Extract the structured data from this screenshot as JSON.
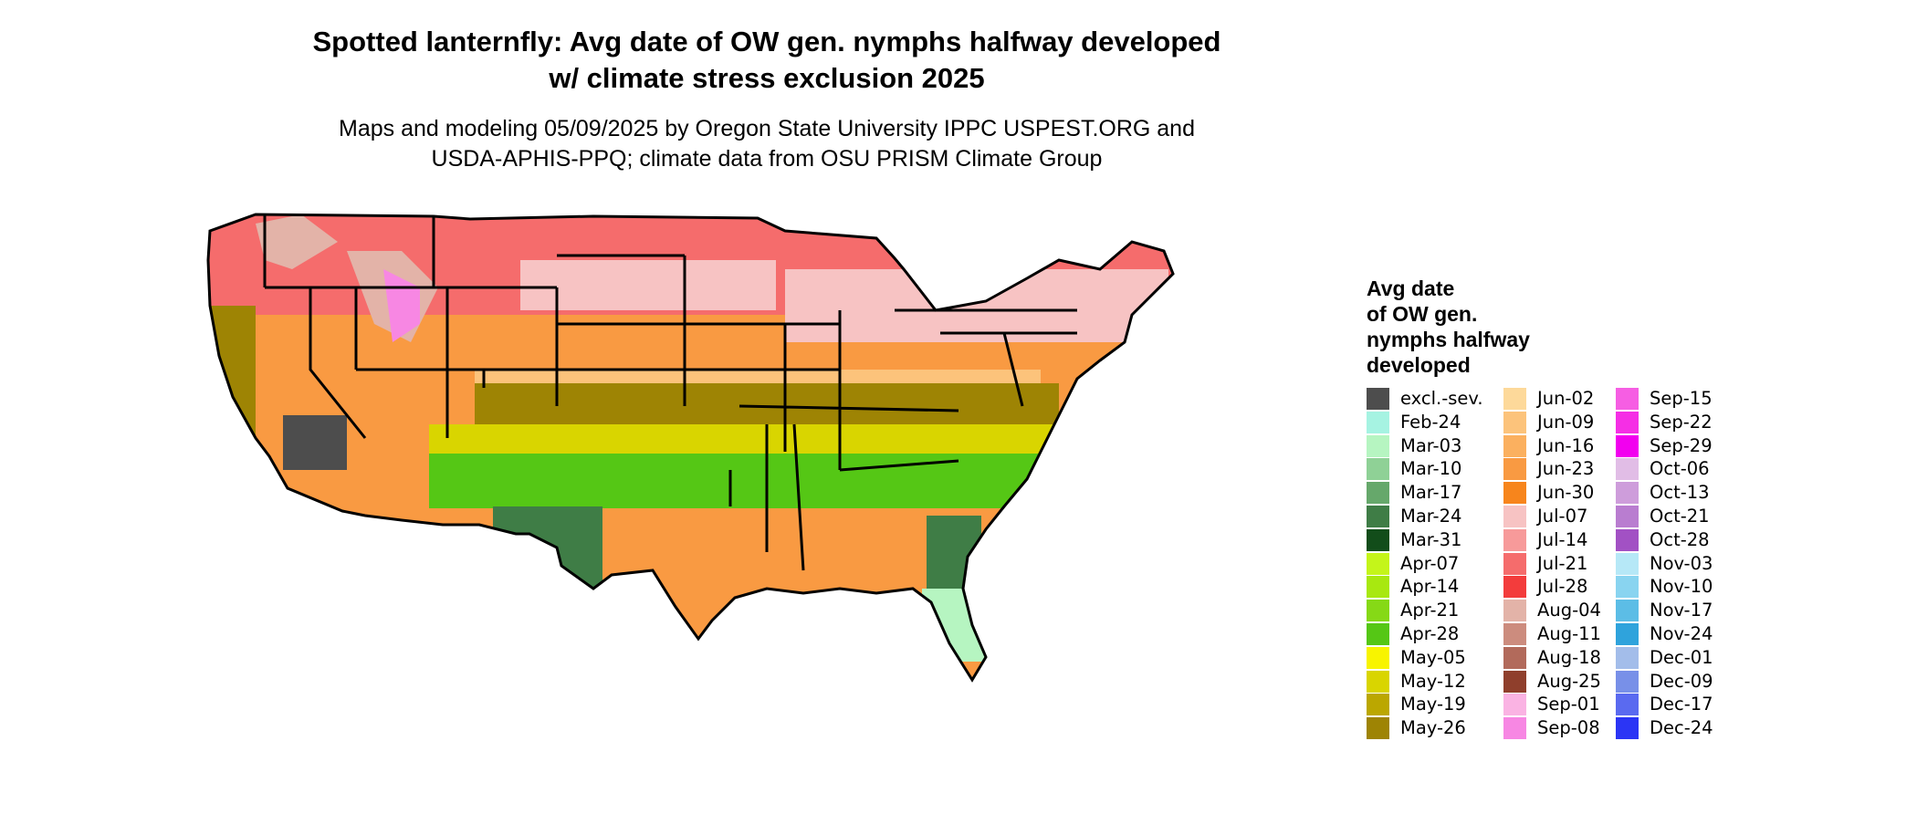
{
  "title": {
    "line1": "Spotted lanternfly: Avg date of OW gen. nymphs halfway developed",
    "line2": "w/ climate stress exclusion 2025"
  },
  "subtitle": {
    "line1": "Maps and modeling 05/09/2025 by Oregon State University IPPC USPEST.ORG and",
    "line2": "USDA-APHIS-PPQ; climate data from OSU PRISM Climate Group"
  },
  "legend": {
    "title_lines": [
      "Avg date",
      "of OW gen.",
      "nymphs halfway",
      "developed"
    ],
    "columns": [
      [
        {
          "label": "excl.-sev.",
          "color": "#4d4d4d"
        },
        {
          "label": "Feb-24",
          "color": "#a6f3e2"
        },
        {
          "label": "Mar-03",
          "color": "#b6f5c1"
        },
        {
          "label": "Mar-10",
          "color": "#8fd196"
        },
        {
          "label": "Mar-17",
          "color": "#66a86b"
        },
        {
          "label": "Mar-24",
          "color": "#3f7d46"
        },
        {
          "label": "Mar-31",
          "color": "#124d1a"
        },
        {
          "label": "Apr-07",
          "color": "#c4f51a"
        },
        {
          "label": "Apr-14",
          "color": "#a8e810"
        },
        {
          "label": "Apr-21",
          "color": "#86d916"
        },
        {
          "label": "Apr-28",
          "color": "#55c715"
        },
        {
          "label": "May-05",
          "color": "#f8f400"
        },
        {
          "label": "May-12",
          "color": "#d9d500"
        },
        {
          "label": "May-19",
          "color": "#bba700"
        },
        {
          "label": "May-26",
          "color": "#9e8404"
        }
      ],
      [
        {
          "label": "Jun-02",
          "color": "#fdd99a"
        },
        {
          "label": "Jun-09",
          "color": "#fcc37b"
        },
        {
          "label": "Jun-16",
          "color": "#fbb05f"
        },
        {
          "label": "Jun-23",
          "color": "#f99a42"
        },
        {
          "label": "Jun-30",
          "color": "#f7851c"
        },
        {
          "label": "Jul-07",
          "color": "#f7c3c3"
        },
        {
          "label": "Jul-14",
          "color": "#f79a9a"
        },
        {
          "label": "Jul-21",
          "color": "#f56c6c"
        },
        {
          "label": "Jul-28",
          "color": "#f33c3c"
        },
        {
          "label": "Aug-04",
          "color": "#e3b3a8"
        },
        {
          "label": "Aug-11",
          "color": "#cc8c7e"
        },
        {
          "label": "Aug-18",
          "color": "#b26a5b"
        },
        {
          "label": "Aug-25",
          "color": "#8f3f2c"
        },
        {
          "label": "Sep-01",
          "color": "#fab3e3"
        },
        {
          "label": "Sep-08",
          "color": "#f787e3"
        }
      ],
      [
        {
          "label": "Sep-15",
          "color": "#f65ee3"
        },
        {
          "label": "Sep-22",
          "color": "#f52fe5"
        },
        {
          "label": "Sep-29",
          "color": "#f200ef"
        },
        {
          "label": "Oct-06",
          "color": "#e1bde6"
        },
        {
          "label": "Oct-13",
          "color": "#ce9ddb"
        },
        {
          "label": "Oct-21",
          "color": "#b97dd0"
        },
        {
          "label": "Oct-28",
          "color": "#a251c4"
        },
        {
          "label": "Nov-03",
          "color": "#b6e8f7"
        },
        {
          "label": "Nov-10",
          "color": "#89d4f0"
        },
        {
          "label": "Nov-17",
          "color": "#5cbde6"
        },
        {
          "label": "Nov-24",
          "color": "#2fa3dc"
        },
        {
          "label": "Dec-01",
          "color": "#a3bdea"
        },
        {
          "label": "Dec-09",
          "color": "#7890e8"
        },
        {
          "label": "Dec-17",
          "color": "#5a6af0"
        },
        {
          "label": "Dec-24",
          "color": "#2b35f5"
        }
      ]
    ]
  },
  "map": {
    "band_colors": {
      "north": "#f56c6c",
      "north_light": "#f7c3c3",
      "central": "#f99a42",
      "central_light": "#fcc37b",
      "south_olive": "#9e8404",
      "gulf_yellow": "#d9d500",
      "gulf_green": "#55c715",
      "florida_green": "#3f7d46",
      "florida_tip": "#b6f5c1",
      "excluded": "#4d4d4d",
      "mountains": "#e3b3a8",
      "high_peaks": "#f787e3"
    }
  }
}
